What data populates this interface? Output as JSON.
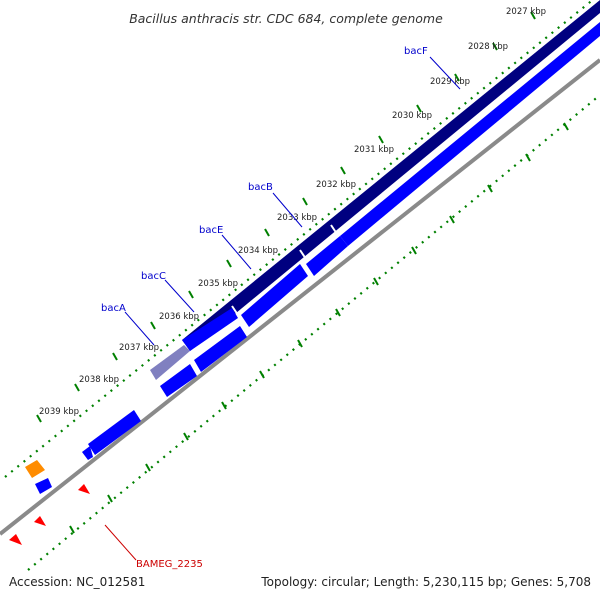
{
  "title": "Bacillus anthracis str. CDC 684, complete genome",
  "accession": "Accession: NC_012581",
  "summary": "Topology: circular; Length: 5,230,115 bp; Genes: 5,708",
  "colors": {
    "backbone": "#8a8a8a",
    "forward_cds": "#0000ff",
    "operon_band": "#000080",
    "highlight": "#8080c0",
    "misc_feature": "#ff8c00",
    "trna": "#ff0000",
    "ticks": "#008000",
    "label_blue": "#0000cc",
    "label_red": "#cc0000"
  },
  "scale_ticks": [
    "2027 kbp",
    "2028 kbp",
    "2029 kbp",
    "2030 kbp",
    "2031 kbp",
    "2032 kbp",
    "2033 kbp",
    "2034 kbp",
    "2035 kbp",
    "2036 kbp",
    "2037 kbp",
    "2038 kbp",
    "2039 kbp"
  ],
  "gene_labels": [
    {
      "name": "bacF",
      "color": "#0000cc"
    },
    {
      "name": "bacB",
      "color": "#0000cc"
    },
    {
      "name": "bacE",
      "color": "#0000cc"
    },
    {
      "name": "bacC",
      "color": "#0000cc"
    },
    {
      "name": "bacA",
      "color": "#0000cc"
    },
    {
      "name": "BAMEG_2235",
      "color": "#cc0000"
    }
  ]
}
